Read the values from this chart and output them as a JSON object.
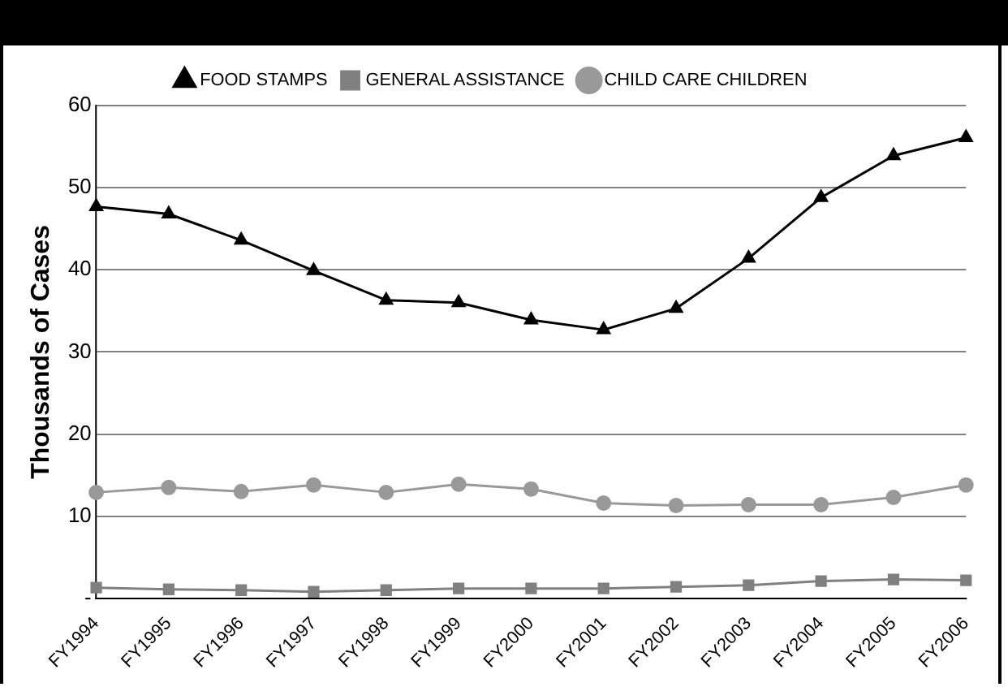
{
  "chart_data": {
    "type": "line",
    "ylabel": "Thousands of Cases",
    "categories": [
      "FY1994",
      "FY1995",
      "FY1996",
      "FY1997",
      "FY1998",
      "FY1999",
      "FY2000",
      "FY2001",
      "FY2002",
      "FY2003",
      "FY2004",
      "FY2005",
      "FY2006"
    ],
    "series": [
      {
        "name": "FOOD STAMPS",
        "color": "#000000",
        "marker": "triangle",
        "values": [
          47.7,
          46.8,
          43.6,
          39.9,
          36.3,
          36.0,
          33.9,
          32.7,
          35.3,
          41.4,
          48.8,
          53.9,
          56.1
        ]
      },
      {
        "name": "GENERAL ASSISTANCE",
        "color": "#808080",
        "marker": "square",
        "values": [
          1.3,
          1.1,
          1.0,
          0.8,
          1.0,
          1.2,
          1.2,
          1.2,
          1.4,
          1.6,
          2.1,
          2.3,
          2.2
        ]
      },
      {
        "name": "CHILD CARE CHILDREN",
        "color": "#999999",
        "marker": "circle",
        "values": [
          12.9,
          13.5,
          13.0,
          13.8,
          12.9,
          13.9,
          13.3,
          11.6,
          11.3,
          11.4,
          11.4,
          12.3,
          13.8
        ]
      }
    ],
    "ylim": [
      0,
      60
    ],
    "yticks": [
      {
        "value": 0,
        "label": "-"
      },
      10,
      20,
      30,
      40,
      50,
      60
    ],
    "grid": "y",
    "legend": "top"
  }
}
